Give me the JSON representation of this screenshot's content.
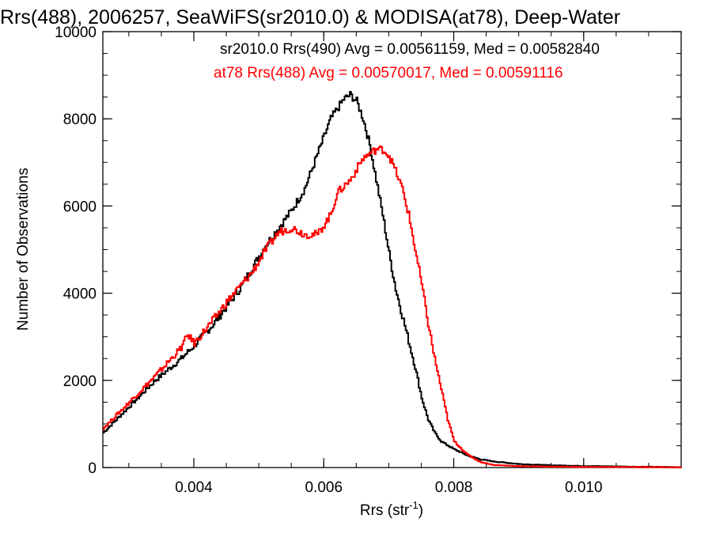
{
  "chart_data": {
    "type": "line",
    "title": "Rrs(488), 2006257, SeaWiFS(sr2010.0) & MODISA(at78), Deep-Water",
    "xlabel": "Rrs (str",
    "xlabel_sup": "-1",
    "xlabel_close": ")",
    "ylabel": "Number of Observations",
    "xlim": [
      0.0026,
      0.0115
    ],
    "ylim": [
      0,
      10000
    ],
    "x_ticks": [
      {
        "value": 0.004,
        "label": "0.004"
      },
      {
        "value": 0.006,
        "label": "0.006"
      },
      {
        "value": 0.008,
        "label": "0.008"
      },
      {
        "value": 0.01,
        "label": "0.010"
      }
    ],
    "y_ticks": [
      {
        "value": 0,
        "label": "0"
      },
      {
        "value": 2000,
        "label": "2000"
      },
      {
        "value": 4000,
        "label": "4000"
      },
      {
        "value": 6000,
        "label": "6000"
      },
      {
        "value": 8000,
        "label": "8000"
      },
      {
        "value": 10000,
        "label": "10000"
      }
    ],
    "grid": false,
    "annotations": [
      {
        "text": "sr2010.0 Rrs(490) Avg = 0.00561159, Med = 0.00582840",
        "color": "#000000"
      },
      {
        "text": "at78 Rrs(488) Avg = 0.00570017, Med = 0.00591116",
        "color": "#ff0000"
      }
    ],
    "series": [
      {
        "color": "#000000",
        "step": true,
        "points": [
          [
            0.0026,
            800
          ],
          [
            0.003,
            1400
          ],
          [
            0.0034,
            2000
          ],
          [
            0.0038,
            2500
          ],
          [
            0.004,
            2800
          ],
          [
            0.0043,
            3300
          ],
          [
            0.0045,
            3700
          ],
          [
            0.0047,
            4100
          ],
          [
            0.0049,
            4600
          ],
          [
            0.0051,
            5100
          ],
          [
            0.0053,
            5500
          ],
          [
            0.0055,
            5900
          ],
          [
            0.0057,
            6400
          ],
          [
            0.0059,
            7200
          ],
          [
            0.0061,
            8000
          ],
          [
            0.0063,
            8450
          ],
          [
            0.0064,
            8550
          ],
          [
            0.0065,
            8400
          ],
          [
            0.0066,
            8000
          ],
          [
            0.0067,
            7400
          ],
          [
            0.0068,
            6600
          ],
          [
            0.0069,
            5800
          ],
          [
            0.007,
            4900
          ],
          [
            0.0071,
            4100
          ],
          [
            0.0072,
            3500
          ],
          [
            0.0073,
            2900
          ],
          [
            0.0074,
            2300
          ],
          [
            0.0075,
            1600
          ],
          [
            0.0076,
            1100
          ],
          [
            0.0077,
            800
          ],
          [
            0.0078,
            600
          ],
          [
            0.008,
            420
          ],
          [
            0.0082,
            280
          ],
          [
            0.0084,
            190
          ],
          [
            0.0086,
            140
          ],
          [
            0.009,
            80
          ],
          [
            0.0095,
            50
          ],
          [
            0.01,
            35
          ],
          [
            0.0105,
            25
          ],
          [
            0.011,
            15
          ],
          [
            0.0115,
            10
          ]
        ]
      },
      {
        "color": "#ff0000",
        "step": true,
        "points": [
          [
            0.0026,
            900
          ],
          [
            0.003,
            1500
          ],
          [
            0.0034,
            2100
          ],
          [
            0.0038,
            2750
          ],
          [
            0.0039,
            3050
          ],
          [
            0.004,
            2850
          ],
          [
            0.0043,
            3400
          ],
          [
            0.0045,
            3800
          ],
          [
            0.0047,
            4150
          ],
          [
            0.0049,
            4500
          ],
          [
            0.0051,
            5000
          ],
          [
            0.0053,
            5400
          ],
          [
            0.0055,
            5500
          ],
          [
            0.0057,
            5350
          ],
          [
            0.0059,
            5350
          ],
          [
            0.0061,
            5800
          ],
          [
            0.0062,
            6300
          ],
          [
            0.0064,
            6600
          ],
          [
            0.0066,
            7100
          ],
          [
            0.0068,
            7300
          ],
          [
            0.0069,
            7300
          ],
          [
            0.007,
            7150
          ],
          [
            0.0071,
            6800
          ],
          [
            0.0072,
            6400
          ],
          [
            0.0073,
            5800
          ],
          [
            0.0074,
            5000
          ],
          [
            0.0075,
            4200
          ],
          [
            0.0076,
            3300
          ],
          [
            0.0077,
            2500
          ],
          [
            0.0078,
            1800
          ],
          [
            0.0079,
            1100
          ],
          [
            0.008,
            600
          ],
          [
            0.0082,
            300
          ],
          [
            0.0084,
            130
          ],
          [
            0.0086,
            60
          ],
          [
            0.009,
            30
          ],
          [
            0.0095,
            20
          ],
          [
            0.01,
            15
          ],
          [
            0.011,
            10
          ],
          [
            0.0115,
            5
          ]
        ]
      }
    ]
  }
}
